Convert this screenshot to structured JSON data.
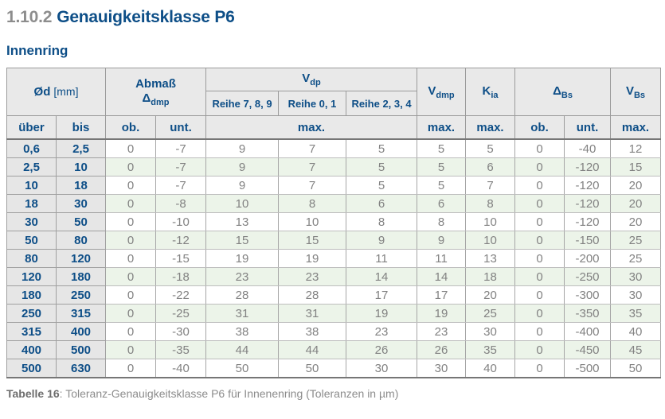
{
  "page": {
    "section_number": "1.10.2",
    "section_title": "Genauigkeitsklasse P6",
    "subtitle": "Innenring",
    "caption_label": "Tabelle 16",
    "caption_rest": ": Toleranz-Genauigkeitsklasse P6 für Innenenring (Toleranzen in µm)"
  },
  "colors": {
    "accent_blue": "#0d4e87",
    "header_bg": "#e9e9e9",
    "label_col_bg": "#e6e6e6",
    "green_row_bg": "#ecf4e9",
    "data_text": "#828282"
  },
  "table": {
    "header": {
      "diameter": {
        "symbol": "Ød",
        "unit": "[mm]"
      },
      "abmass": {
        "label": "Abmaß",
        "symbol": "Δ",
        "subscript": "dmp"
      },
      "vdp": {
        "symbol": "V",
        "subscript": "dp"
      },
      "reihe": [
        "Reihe 7, 8, 9",
        "Reihe 0, 1",
        "Reihe 2, 3, 4"
      ],
      "vdmp": {
        "symbol": "V",
        "subscript": "dmp"
      },
      "kia": {
        "symbol": "K",
        "subscript": "ia"
      },
      "dbs": {
        "symbol": "Δ",
        "subscript": "Bs"
      },
      "vbs": {
        "symbol": "V",
        "subscript": "Bs"
      }
    },
    "subheader": [
      "über",
      "bis",
      "ob.",
      "unt.",
      "max.",
      "max.",
      "max.",
      "ob.",
      "unt.",
      "max."
    ],
    "rows": [
      [
        "0,6",
        "2,5",
        "0",
        "-7",
        "9",
        "7",
        "5",
        "5",
        "5",
        "0",
        "-40",
        "12"
      ],
      [
        "2,5",
        "10",
        "0",
        "-7",
        "9",
        "7",
        "5",
        "5",
        "6",
        "0",
        "-120",
        "15"
      ],
      [
        "10",
        "18",
        "0",
        "-7",
        "9",
        "7",
        "5",
        "5",
        "7",
        "0",
        "-120",
        "20"
      ],
      [
        "18",
        "30",
        "0",
        "-8",
        "10",
        "8",
        "6",
        "6",
        "8",
        "0",
        "-120",
        "20"
      ],
      [
        "30",
        "50",
        "0",
        "-10",
        "13",
        "10",
        "8",
        "8",
        "10",
        "0",
        "-120",
        "20"
      ],
      [
        "50",
        "80",
        "0",
        "-12",
        "15",
        "15",
        "9",
        "9",
        "10",
        "0",
        "-150",
        "25"
      ],
      [
        "80",
        "120",
        "0",
        "-15",
        "19",
        "19",
        "11",
        "11",
        "13",
        "0",
        "-200",
        "25"
      ],
      [
        "120",
        "180",
        "0",
        "-18",
        "23",
        "23",
        "14",
        "14",
        "18",
        "0",
        "-250",
        "30"
      ],
      [
        "180",
        "250",
        "0",
        "-22",
        "28",
        "28",
        "17",
        "17",
        "20",
        "0",
        "-300",
        "30"
      ],
      [
        "250",
        "315",
        "0",
        "-25",
        "31",
        "31",
        "19",
        "19",
        "25",
        "0",
        "-350",
        "35"
      ],
      [
        "315",
        "400",
        "0",
        "-30",
        "38",
        "38",
        "23",
        "23",
        "30",
        "0",
        "-400",
        "40"
      ],
      [
        "400",
        "500",
        "0",
        "-35",
        "44",
        "44",
        "26",
        "26",
        "35",
        "0",
        "-450",
        "45"
      ],
      [
        "500",
        "630",
        "0",
        "-40",
        "50",
        "50",
        "30",
        "30",
        "40",
        "0",
        "-500",
        "50"
      ]
    ]
  }
}
